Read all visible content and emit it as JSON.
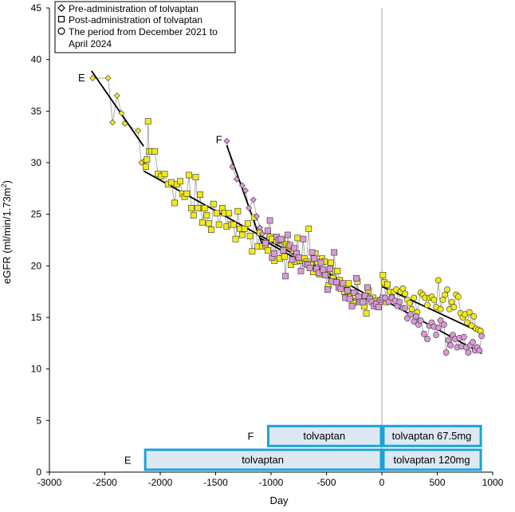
{
  "chart_data": {
    "type": "scatter",
    "xlabel": "Day",
    "ylabel": "eGFR (ml/min/1.73m",
    "ylabel_sup": "2",
    "ylabel_suffix": ")",
    "xlim": [
      -3000,
      1000
    ],
    "ylim": [
      0,
      45
    ],
    "xticks": [
      -3000,
      -2500,
      -2000,
      -1500,
      -1000,
      -500,
      0,
      500,
      1000
    ],
    "yticks": [
      0,
      5,
      10,
      15,
      20,
      25,
      30,
      35,
      40,
      45
    ],
    "legend": {
      "position": "top-left",
      "lines": [
        {
          "marker": "diamond",
          "text": "Pre-administration of tolvaptan"
        },
        {
          "marker": "square",
          "text": "Post-administration of tolvaptan"
        },
        {
          "marker": "circle",
          "text": "The period from December 2021 to"
        },
        {
          "marker": "none",
          "text": "April 2024"
        }
      ]
    },
    "colors": {
      "E": "#f2ea1a",
      "F": "#d99ad6",
      "bar_fill": "#dde8f3",
      "bar_border": "#1aa3d9",
      "line": "#9a9a9a",
      "fit": "#000000"
    },
    "patient_labels": [
      {
        "text": "E",
        "x": -2710,
        "y": 38.2
      },
      {
        "text": "F",
        "x": -1470,
        "y": 32.2
      }
    ],
    "series": [
      {
        "name": "E",
        "pre": [
          [
            -2610,
            38.2
          ],
          [
            -2470,
            38.2
          ],
          [
            -2430,
            33.9
          ],
          [
            -2390,
            36.5
          ],
          [
            -2350,
            34.8
          ],
          [
            -2320,
            33.8
          ],
          [
            -2200,
            33.1
          ],
          [
            -2170,
            30.0
          ],
          [
            -2140,
            30.2
          ]
        ],
        "post": [
          [
            -2130,
            29.6
          ],
          [
            -2120,
            30.3
          ],
          [
            -2110,
            34.0
          ],
          [
            -2100,
            31.1
          ],
          [
            -2080,
            31.1
          ],
          [
            -2050,
            31.1
          ],
          [
            -2020,
            28.9
          ],
          [
            -1990,
            28.7
          ],
          [
            -1960,
            28.9
          ],
          [
            -1930,
            27.9
          ],
          [
            -1900,
            28.1
          ],
          [
            -1870,
            26.1
          ],
          [
            -1850,
            27.9
          ],
          [
            -1820,
            28.2
          ],
          [
            -1800,
            27.0
          ],
          [
            -1780,
            26.7
          ],
          [
            -1760,
            27.0
          ],
          [
            -1740,
            28.8
          ],
          [
            -1720,
            25.6
          ],
          [
            -1700,
            24.9
          ],
          [
            -1680,
            28.6
          ],
          [
            -1660,
            25.6
          ],
          [
            -1640,
            26.9
          ],
          [
            -1620,
            24.2
          ],
          [
            -1600,
            25.6
          ],
          [
            -1580,
            24.9
          ],
          [
            -1560,
            24.1
          ],
          [
            -1540,
            23.5
          ],
          [
            -1520,
            26.0
          ],
          [
            -1490,
            25.1
          ],
          [
            -1470,
            24.0
          ],
          [
            -1440,
            25.6
          ],
          [
            -1420,
            25.1
          ],
          [
            -1400,
            23.8
          ],
          [
            -1380,
            25.1
          ],
          [
            -1360,
            24.0
          ],
          [
            -1340,
            24.0
          ],
          [
            -1320,
            22.6
          ],
          [
            -1300,
            25.3
          ],
          [
            -1280,
            23.6
          ],
          [
            -1260,
            23.0
          ],
          [
            -1240,
            23.6
          ],
          [
            -1210,
            24.1
          ],
          [
            -1190,
            22.9
          ],
          [
            -1170,
            21.4
          ],
          [
            -1150,
            24.7
          ],
          [
            -1120,
            21.9
          ],
          [
            -1100,
            23.2
          ],
          [
            -1080,
            21.9
          ],
          [
            -1050,
            22.0
          ],
          [
            -1030,
            21.5
          ],
          [
            -1010,
            22.8
          ],
          [
            -990,
            22.6
          ],
          [
            -970,
            20.5
          ],
          [
            -950,
            22.4
          ],
          [
            -920,
            20.7
          ],
          [
            -900,
            22.4
          ],
          [
            -880,
            20.9
          ],
          [
            -860,
            22.1
          ],
          [
            -840,
            21.9
          ],
          [
            -820,
            20.1
          ],
          [
            -800,
            21.5
          ],
          [
            -780,
            20.4
          ],
          [
            -760,
            22.7
          ],
          [
            -740,
            20.5
          ],
          [
            -720,
            20.5
          ],
          [
            -700,
            20.7
          ],
          [
            -680,
            20.4
          ],
          [
            -660,
            23.6
          ],
          [
            -640,
            20.1
          ],
          [
            -620,
            19.4
          ],
          [
            -600,
            21.2
          ],
          [
            -580,
            20.4
          ],
          [
            -560,
            19.2
          ],
          [
            -540,
            20.7
          ],
          [
            -520,
            20.4
          ],
          [
            -500,
            19.2
          ],
          [
            -480,
            18.1
          ],
          [
            -460,
            20.3
          ],
          [
            -440,
            18.8
          ],
          [
            -420,
            19.5
          ],
          [
            -400,
            19.5
          ],
          [
            -380,
            18.6
          ],
          [
            -360,
            18.1
          ],
          [
            -340,
            17.5
          ],
          [
            -320,
            18.2
          ],
          [
            -300,
            18.3
          ],
          [
            -280,
            17.0
          ],
          [
            -260,
            16.4
          ],
          [
            -240,
            17.1
          ],
          [
            -220,
            18.5
          ],
          [
            -200,
            16.5
          ],
          [
            -180,
            16.9
          ],
          [
            -160,
            16.1
          ],
          [
            -140,
            15.4
          ],
          [
            -120,
            17.6
          ],
          [
            -100,
            16.9
          ],
          [
            -80,
            16.9
          ],
          [
            -60,
            16.6
          ],
          [
            -40,
            16.1
          ],
          [
            -20,
            16.5
          ],
          [
            10,
            19.1
          ],
          [
            20,
            18.4
          ],
          [
            40,
            16.5
          ],
          [
            50,
            18.2
          ]
        ],
        "period": [
          [
            70,
            17.5
          ],
          [
            90,
            17.0
          ],
          [
            110,
            17.5
          ],
          [
            130,
            17.7
          ],
          [
            150,
            16.4
          ],
          [
            170,
            17.5
          ],
          [
            190,
            17.8
          ],
          [
            210,
            17.3
          ],
          [
            230,
            16.7
          ],
          [
            250,
            16.4
          ],
          [
            270,
            15.8
          ],
          [
            290,
            16.9
          ],
          [
            320,
            15.5
          ],
          [
            350,
            17.4
          ],
          [
            370,
            17.2
          ],
          [
            390,
            16.9
          ],
          [
            410,
            16.2
          ],
          [
            430,
            16.9
          ],
          [
            450,
            17.0
          ],
          [
            470,
            16.7
          ],
          [
            490,
            16.0
          ],
          [
            510,
            18.6
          ],
          [
            530,
            15.8
          ],
          [
            550,
            16.7
          ],
          [
            570,
            17.2
          ],
          [
            590,
            17.7
          ],
          [
            610,
            15.8
          ],
          [
            630,
            16.5
          ],
          [
            650,
            16.0
          ],
          [
            670,
            17.2
          ],
          [
            690,
            17.0
          ],
          [
            710,
            15.4
          ],
          [
            730,
            15.0
          ],
          [
            750,
            15.3
          ],
          [
            770,
            14.5
          ],
          [
            790,
            15.5
          ],
          [
            810,
            14.2
          ],
          [
            830,
            15.1
          ],
          [
            850,
            13.9
          ],
          [
            870,
            13.8
          ],
          [
            890,
            13.7
          ]
        ],
        "fits": [
          [
            -2620,
            38.9,
            -2150,
            31.6
          ],
          [
            -2150,
            29.2,
            0,
            16.4
          ],
          [
            0,
            18.0,
            900,
            13.5
          ]
        ]
      },
      {
        "name": "F",
        "pre": [
          [
            -1400,
            32.1
          ],
          [
            -1350,
            29.6
          ],
          [
            -1310,
            28.4
          ],
          [
            -1260,
            27.8
          ],
          [
            -1230,
            27.3
          ],
          [
            -1200,
            25.6
          ],
          [
            -1160,
            26.4
          ],
          [
            -1130,
            24.8
          ],
          [
            -1100,
            23.7
          ],
          [
            -1080,
            23.1
          ]
        ],
        "post": [
          [
            -1050,
            22.2
          ],
          [
            -1030,
            23.4
          ],
          [
            -1010,
            24.4
          ],
          [
            -990,
            20.8
          ],
          [
            -970,
            21.2
          ],
          [
            -950,
            22.8
          ],
          [
            -930,
            22.5
          ],
          [
            -910,
            22.6
          ],
          [
            -890,
            21.5
          ],
          [
            -870,
            19.0
          ],
          [
            -850,
            23.0
          ],
          [
            -830,
            22.0
          ],
          [
            -810,
            20.6
          ],
          [
            -790,
            21.7
          ],
          [
            -770,
            21.2
          ],
          [
            -750,
            20.8
          ],
          [
            -730,
            19.5
          ],
          [
            -710,
            22.6
          ],
          [
            -690,
            20.2
          ],
          [
            -670,
            20.1
          ],
          [
            -650,
            19.8
          ],
          [
            -630,
            21.3
          ],
          [
            -610,
            20.7
          ],
          [
            -590,
            19.7
          ],
          [
            -570,
            19.3
          ],
          [
            -550,
            20.3
          ],
          [
            -530,
            19.6
          ],
          [
            -510,
            19.1
          ],
          [
            -490,
            17.7
          ],
          [
            -470,
            19.7
          ],
          [
            -450,
            18.5
          ],
          [
            -430,
            21.3
          ],
          [
            -410,
            18.4
          ],
          [
            -390,
            17.9
          ],
          [
            -370,
            17.8
          ],
          [
            -350,
            18.3
          ],
          [
            -330,
            16.9
          ],
          [
            -310,
            17.6
          ],
          [
            -290,
            16.8
          ],
          [
            -270,
            16.1
          ],
          [
            -250,
            17.4
          ],
          [
            -230,
            18.8
          ],
          [
            -210,
            17.0
          ],
          [
            -190,
            16.5
          ],
          [
            -170,
            16.5
          ],
          [
            -150,
            17.1
          ],
          [
            -130,
            17.9
          ],
          [
            -110,
            16.8
          ],
          [
            -90,
            16.5
          ],
          [
            -70,
            16.1
          ],
          [
            -50,
            16.3
          ],
          [
            -30,
            16.0
          ],
          [
            -10,
            16.7
          ],
          [
            10,
            16.9
          ]
        ],
        "period": [
          [
            30,
            16.9
          ],
          [
            60,
            16.5
          ],
          [
            90,
            16.9
          ],
          [
            120,
            16.6
          ],
          [
            140,
            16.1
          ],
          [
            160,
            16.5
          ],
          [
            190,
            15.9
          ],
          [
            210,
            15.9
          ],
          [
            230,
            14.9
          ],
          [
            260,
            15.3
          ],
          [
            290,
            14.6
          ],
          [
            310,
            15.1
          ],
          [
            330,
            14.3
          ],
          [
            350,
            14.7
          ],
          [
            380,
            13.4
          ],
          [
            410,
            12.9
          ],
          [
            430,
            14.2
          ],
          [
            450,
            14.5
          ],
          [
            470,
            14.1
          ],
          [
            490,
            13.3
          ],
          [
            510,
            14.0
          ],
          [
            530,
            14.7
          ],
          [
            560,
            14.3
          ],
          [
            580,
            11.6
          ],
          [
            600,
            12.8
          ],
          [
            620,
            12.3
          ],
          [
            640,
            13.3
          ],
          [
            660,
            12.9
          ],
          [
            680,
            12.1
          ],
          [
            700,
            13.0
          ],
          [
            720,
            12.2
          ],
          [
            740,
            13.1
          ],
          [
            760,
            12.1
          ],
          [
            780,
            11.6
          ],
          [
            800,
            12.3
          ],
          [
            820,
            12.6
          ],
          [
            840,
            11.8
          ],
          [
            860,
            12.1
          ],
          [
            880,
            11.8
          ],
          [
            900,
            13.2
          ]
        ],
        "fits": [
          [
            -1400,
            31.7,
            -1080,
            22.1
          ],
          [
            -1100,
            22.7,
            0,
            15.9
          ],
          [
            0,
            16.8,
            900,
            11.5
          ]
        ]
      }
    ],
    "treatment_bars": [
      {
        "patient": "F",
        "y_center": 3.5,
        "segments": [
          {
            "x0": -1040,
            "x1": 0,
            "label": "tolvaptan"
          },
          {
            "x0": 0,
            "x1": 900,
            "label": "tolvaptan 67.5mg"
          }
        ]
      },
      {
        "patient": "E",
        "y_center": 1.2,
        "segments": [
          {
            "x0": -2150,
            "x1": 0,
            "label": "tolvaptan"
          },
          {
            "x0": 0,
            "x1": 900,
            "label": "tolvaptan 120mg"
          }
        ]
      }
    ]
  }
}
